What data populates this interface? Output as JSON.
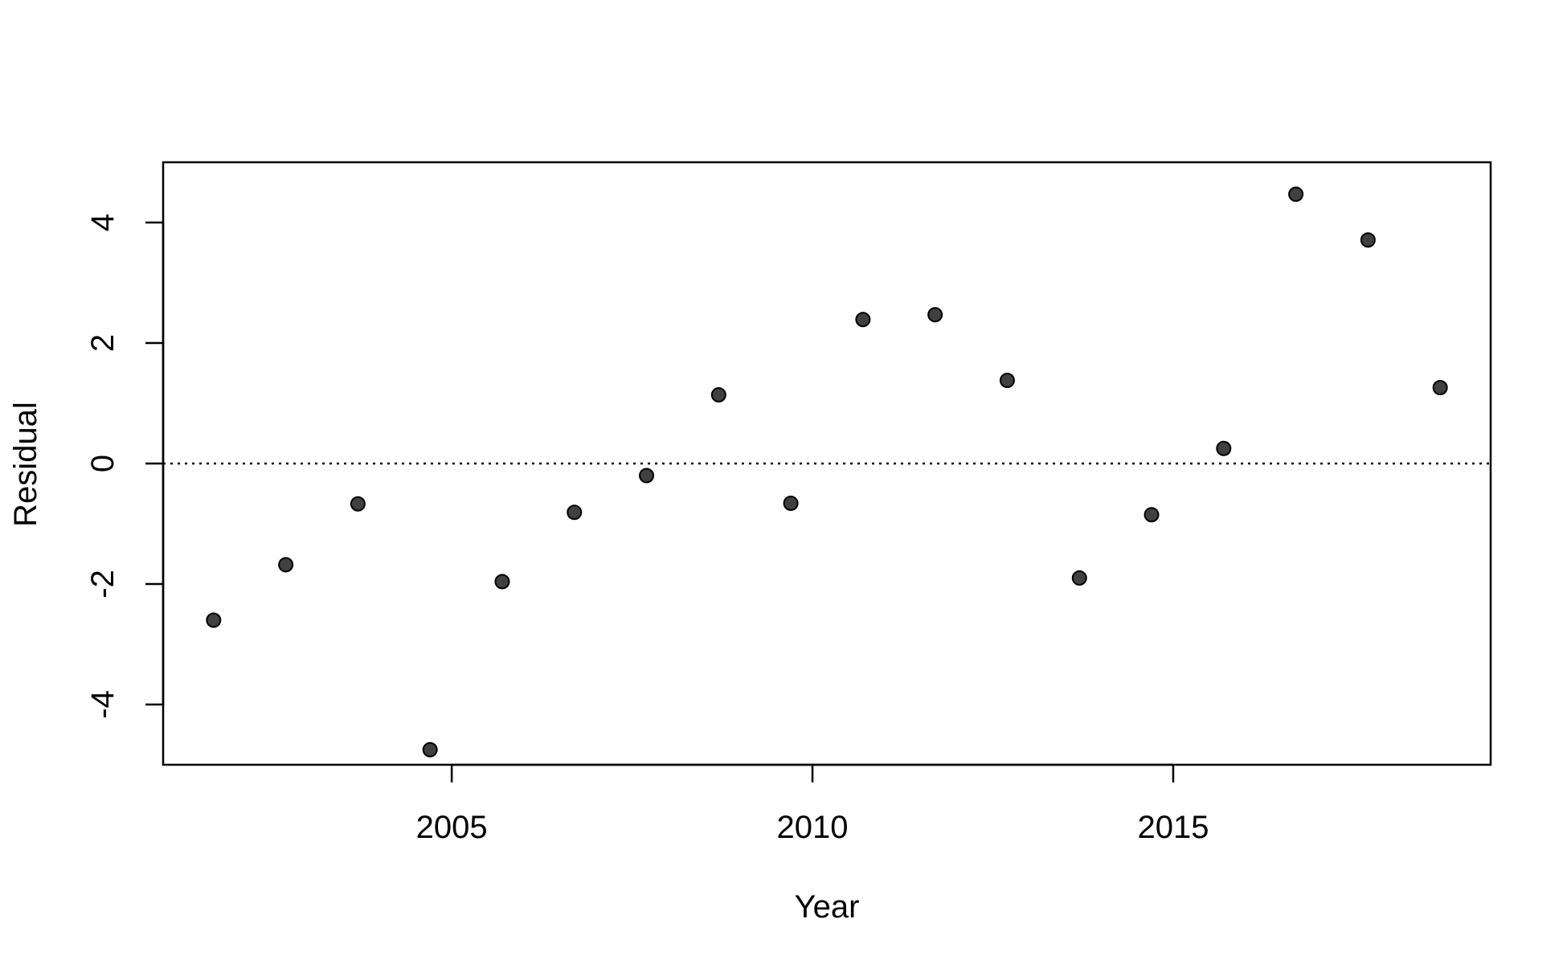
{
  "chart_data": {
    "type": "scatter",
    "title": "",
    "xlabel": "Year",
    "ylabel": "Residual",
    "xlim": [
      2001.0,
      2019.4
    ],
    "ylim": [
      -5.0,
      5.0
    ],
    "xticks": [
      2005,
      2010,
      2015
    ],
    "yticks": [
      -4,
      -2,
      0,
      2,
      4
    ],
    "reference_line": {
      "y": 0,
      "style": "dotted"
    },
    "grid": false,
    "legend": "none",
    "point_color": "#404040",
    "points": [
      {
        "x": 2001.7,
        "y": -2.6
      },
      {
        "x": 2002.7,
        "y": -1.68
      },
      {
        "x": 2003.7,
        "y": -0.67
      },
      {
        "x": 2004.7,
        "y": -4.75
      },
      {
        "x": 2005.7,
        "y": -1.96
      },
      {
        "x": 2006.7,
        "y": -0.81
      },
      {
        "x": 2007.7,
        "y": -0.2
      },
      {
        "x": 2008.7,
        "y": 1.14
      },
      {
        "x": 2009.7,
        "y": -0.66
      },
      {
        "x": 2010.7,
        "y": 2.39
      },
      {
        "x": 2011.7,
        "y": 2.47
      },
      {
        "x": 2012.7,
        "y": 1.38
      },
      {
        "x": 2013.7,
        "y": -1.9
      },
      {
        "x": 2014.7,
        "y": -0.85
      },
      {
        "x": 2015.7,
        "y": 0.25
      },
      {
        "x": 2016.7,
        "y": 4.47
      },
      {
        "x": 2017.7,
        "y": 3.71
      },
      {
        "x": 2018.7,
        "y": 1.26
      }
    ]
  }
}
